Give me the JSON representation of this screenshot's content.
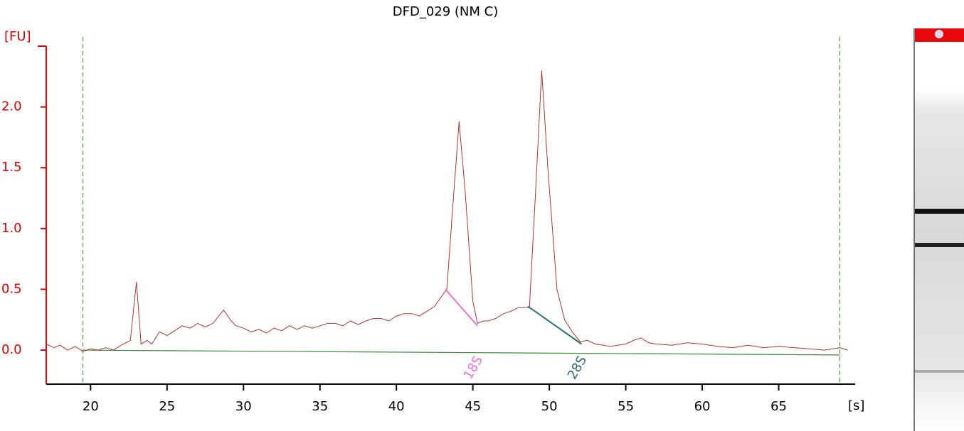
{
  "chart_data": {
    "type": "line",
    "title": "DFD_029 (NM C)",
    "y_label": "[FU]",
    "x_label": "[s]",
    "xlim": [
      17.1,
      70
    ],
    "ylim": [
      -0.28,
      2.5
    ],
    "xticks": [
      20,
      25,
      30,
      35,
      40,
      45,
      50,
      55,
      60,
      65
    ],
    "yticks": [
      {
        "value": 0,
        "label": "0.0"
      },
      0.5,
      {
        "value": 1,
        "label": "1.0"
      },
      1.5,
      {
        "value": 2,
        "label": "2.0"
      }
    ],
    "x": [
      17.1,
      17.6,
      18,
      18.5,
      19,
      19.5,
      20,
      20.5,
      21,
      21.5,
      22,
      22.6,
      23.0,
      23.3,
      23.7,
      24,
      24.5,
      25,
      25.5,
      26,
      26.5,
      27,
      27.5,
      28,
      28.7,
      29.2,
      29.5,
      30,
      30.5,
      31,
      31.5,
      32,
      32.5,
      33,
      33.5,
      34,
      34.5,
      35,
      35.5,
      36,
      36.5,
      37,
      37.5,
      38,
      38.5,
      39,
      39.5,
      40,
      40.5,
      41,
      41.5,
      42,
      42.5,
      43,
      43.3,
      43.7,
      44.1,
      44.5,
      45,
      45.3,
      45.7,
      46,
      46.5,
      47,
      47.5,
      48,
      48.7,
      49.1,
      49.5,
      49.9,
      50.5,
      51,
      51.5,
      52,
      52.5,
      53,
      54,
      55,
      55.5,
      56,
      56.5,
      57,
      58,
      59,
      60,
      61,
      62,
      63,
      64,
      65,
      66,
      67,
      68,
      69,
      69.5
    ],
    "series": [
      {
        "color": "#b5332b",
        "values": [
          0.05,
          0.02,
          0.04,
          0.0,
          0.03,
          -0.01,
          0.01,
          0.0,
          0.02,
          0.0,
          0.04,
          0.08,
          0.56,
          0.05,
          0.08,
          0.05,
          0.15,
          0.12,
          0.16,
          0.2,
          0.18,
          0.22,
          0.19,
          0.22,
          0.33,
          0.24,
          0.2,
          0.18,
          0.15,
          0.17,
          0.14,
          0.18,
          0.16,
          0.2,
          0.17,
          0.2,
          0.18,
          0.2,
          0.22,
          0.22,
          0.2,
          0.24,
          0.21,
          0.24,
          0.26,
          0.26,
          0.24,
          0.28,
          0.3,
          0.3,
          0.28,
          0.32,
          0.36,
          0.45,
          0.5,
          1.2,
          1.88,
          1.3,
          0.4,
          0.22,
          0.24,
          0.24,
          0.26,
          0.3,
          0.32,
          0.35,
          0.35,
          1.3,
          2.3,
          1.5,
          0.5,
          0.25,
          0.15,
          0.07,
          0.08,
          0.05,
          0.03,
          0.05,
          0.08,
          0.1,
          0.06,
          0.05,
          0.04,
          0.06,
          0.05,
          0.03,
          0.02,
          0.04,
          0.02,
          0.03,
          0.02,
          0.01,
          0.0,
          0.02,
          0.0
        ]
      }
    ],
    "baseline": {
      "color": "#3a8a3a",
      "x": [
        19.5,
        69
      ],
      "values": [
        0,
        -0.04
      ]
    },
    "markers": {
      "color": "#3a8a3a",
      "x": [
        19.5,
        69
      ]
    },
    "peaks": [
      {
        "label": "18S",
        "color": "#f070d8",
        "x": [
          43.2,
          45.3
        ],
        "values": [
          0.5,
          0.2
        ]
      },
      {
        "label": "28S",
        "color": "#2e7070",
        "x": [
          48.6,
          52.1
        ],
        "values": [
          0.36,
          0.05
        ]
      }
    ]
  }
}
